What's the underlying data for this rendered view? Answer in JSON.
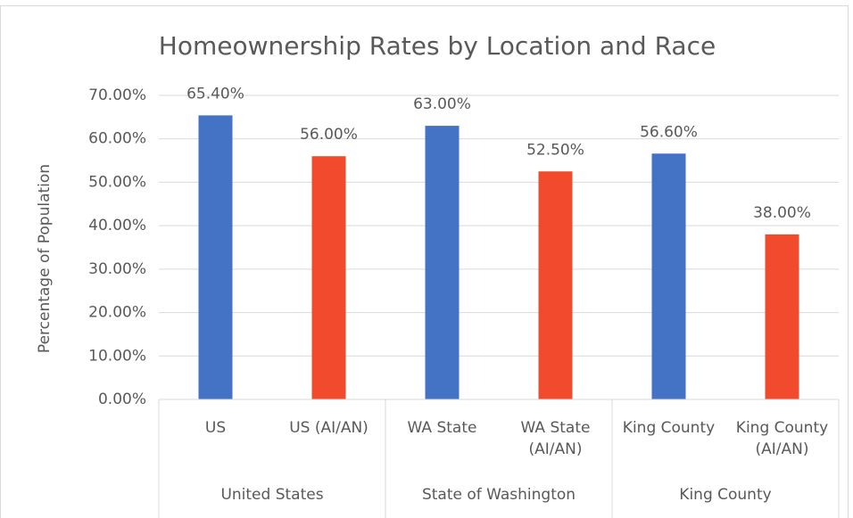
{
  "chart_data": {
    "type": "bar",
    "title": "Homeownership Rates by Location and Race",
    "ylabel": "Percentage of Population",
    "categories": [
      "US",
      "US (AI/AN)",
      "WA State",
      "WA State (AI/AN)",
      "King County",
      "King County (AI/AN)"
    ],
    "groups": [
      "United States",
      "State of Washington",
      "King County"
    ],
    "values": [
      65.4,
      56,
      63,
      52.5,
      56.6,
      38
    ],
    "value_labels": [
      "65.40%",
      "56.00%",
      "63.00%",
      "52.50%",
      "56.60%",
      "38.00%"
    ],
    "colors": [
      "#4472c4",
      "#f14a2c",
      "#4472c4",
      "#f14a2c",
      "#4472c4",
      "#f14a2c"
    ],
    "ylim": [
      0,
      70
    ],
    "yticks": [
      {
        "value": 0,
        "label": "0.00%"
      },
      {
        "value": 10,
        "label": "10.00%"
      },
      {
        "value": 20,
        "label": "20.00%"
      },
      {
        "value": 30,
        "label": "30.00%"
      },
      {
        "value": 40,
        "label": "40.00%"
      },
      {
        "value": 50,
        "label": "50.00%"
      },
      {
        "value": 60,
        "label": "60.00%"
      },
      {
        "value": 70,
        "label": "70.00%"
      }
    ],
    "grid": true
  }
}
